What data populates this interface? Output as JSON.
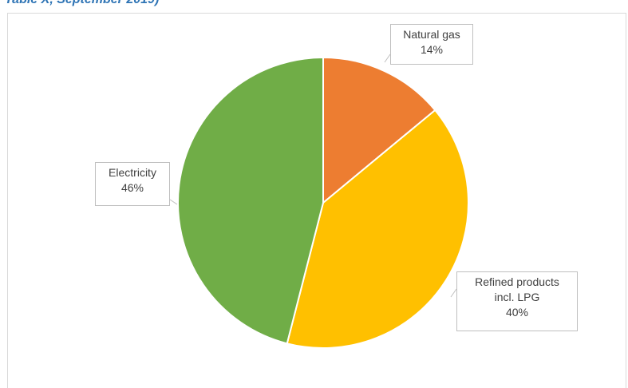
{
  "caption": "Table X, September 2019)",
  "chart_data": {
    "type": "pie",
    "start_angle_deg": 0,
    "direction": "clockwise",
    "slices": [
      {
        "label": "Natural gas",
        "value": 14,
        "value_label": "14%",
        "color": "#ed7d31"
      },
      {
        "label": "Refined products incl. LPG",
        "label_lines": [
          "Refined products",
          "incl. LPG"
        ],
        "value": 40,
        "value_label": "40%",
        "color": "#ffc000"
      },
      {
        "label": "Electricity",
        "value": 46,
        "value_label": "46%",
        "color": "#70ad47"
      }
    ]
  }
}
